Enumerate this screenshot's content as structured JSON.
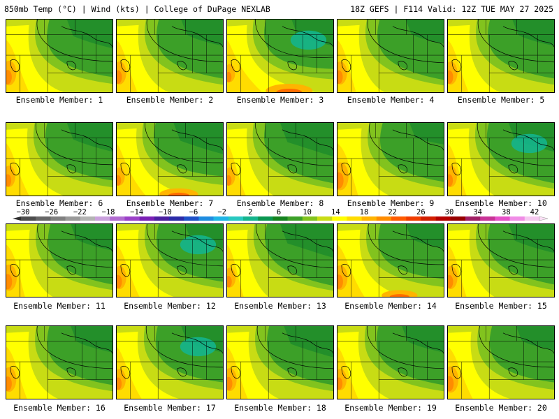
{
  "header": {
    "left": "850mb Temp (°C) | Wind (kts) | College of DuPage NEXLAB",
    "right": "18Z GEFS | F114 Valid: 12Z TUE MAY 27 2025"
  },
  "members": [
    {
      "label": "Ensemble Member: 1",
      "west_warmth": 0.75,
      "south_warmth": 0.55,
      "cool_extent": 0.6
    },
    {
      "label": "Ensemble Member: 2",
      "west_warmth": 0.7,
      "south_warmth": 0.5,
      "cool_extent": 0.55
    },
    {
      "label": "Ensemble Member: 3",
      "west_warmth": 0.55,
      "south_warmth": 0.85,
      "cool_extent": 0.55
    },
    {
      "label": "Ensemble Member: 4",
      "west_warmth": 0.7,
      "south_warmth": 0.45,
      "cool_extent": 0.5
    },
    {
      "label": "Ensemble Member: 5",
      "west_warmth": 0.7,
      "south_warmth": 0.5,
      "cool_extent": 0.55
    },
    {
      "label": "Ensemble Member: 6",
      "west_warmth": 0.65,
      "south_warmth": 0.55,
      "cool_extent": 0.6
    },
    {
      "label": "Ensemble Member: 7",
      "west_warmth": 0.55,
      "south_warmth": 0.7,
      "cool_extent": 0.65
    },
    {
      "label": "Ensemble Member: 8",
      "west_warmth": 0.55,
      "south_warmth": 0.45,
      "cool_extent": 0.7
    },
    {
      "label": "Ensemble Member: 9",
      "west_warmth": 0.85,
      "south_warmth": 0.5,
      "cool_extent": 0.45
    },
    {
      "label": "Ensemble Member: 10",
      "west_warmth": 0.65,
      "south_warmth": 0.45,
      "cool_extent": 0.6
    },
    {
      "label": "Ensemble Member: 11",
      "west_warmth": 0.8,
      "south_warmth": 0.45,
      "cool_extent": 0.55
    },
    {
      "label": "Ensemble Member: 12",
      "west_warmth": 0.7,
      "south_warmth": 0.55,
      "cool_extent": 0.5
    },
    {
      "label": "Ensemble Member: 13",
      "west_warmth": 0.6,
      "south_warmth": 0.4,
      "cool_extent": 0.7
    },
    {
      "label": "Ensemble Member: 14",
      "west_warmth": 0.75,
      "south_warmth": 0.65,
      "cool_extent": 0.5
    },
    {
      "label": "Ensemble Member: 15",
      "west_warmth": 0.7,
      "south_warmth": 0.45,
      "cool_extent": 0.6
    },
    {
      "label": "Ensemble Member: 16",
      "west_warmth": 0.75,
      "south_warmth": 0.5,
      "cool_extent": 0.55
    },
    {
      "label": "Ensemble Member: 17",
      "west_warmth": 0.65,
      "south_warmth": 0.6,
      "cool_extent": 0.55
    },
    {
      "label": "Ensemble Member: 18",
      "west_warmth": 0.7,
      "south_warmth": 0.5,
      "cool_extent": 0.65
    },
    {
      "label": "Ensemble Member: 19",
      "west_warmth": 0.65,
      "south_warmth": 0.5,
      "cool_extent": 0.55
    },
    {
      "label": "Ensemble Member: 20",
      "west_warmth": 0.8,
      "south_warmth": 0.6,
      "cool_extent": 0.5
    }
  ],
  "colorbar": {
    "labels": [
      "−30",
      "−26",
      "−22",
      "−18",
      "−14",
      "−10",
      "−6",
      "−2",
      "2",
      "6",
      "10",
      "14",
      "18",
      "22",
      "26",
      "30",
      "34",
      "38",
      "42"
    ],
    "colors": [
      "#4d4d4d",
      "#666666",
      "#808080",
      "#999999",
      "#b3b3b3",
      "#c9a0dc",
      "#b06ad0",
      "#9b40c8",
      "#7a1fb5",
      "#4b1fa0",
      "#2a2aa8",
      "#1e50c8",
      "#1e8ce0",
      "#1eb4e6",
      "#28c8c0",
      "#14b48c",
      "#0a9650",
      "#14821e",
      "#3ca028",
      "#82c31e",
      "#c8dc14",
      "#ffff00",
      "#ffdc00",
      "#ffb400",
      "#ff8c00",
      "#ff5a00",
      "#f03c00",
      "#d21e00",
      "#b40000",
      "#960000",
      "#a01e64",
      "#c83296",
      "#e650c8",
      "#f08ce6",
      "#f5c8f0"
    ]
  },
  "palette": {
    "green_dark": "#1e8c2a",
    "green": "#3ca028",
    "green_light": "#82c31e",
    "teal": "#14b48c",
    "yellow_green": "#c8dc14",
    "yellow": "#ffff00",
    "gold": "#ffdc00",
    "orange_light": "#ffb400",
    "orange": "#ff8c00",
    "red_orange": "#ff5a00"
  }
}
